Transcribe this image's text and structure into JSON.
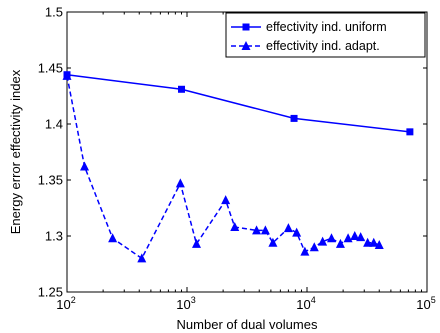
{
  "chart_data": {
    "type": "line",
    "title": "",
    "xlabel": "Number of dual volumes",
    "ylabel": "Energy error effectivity index",
    "x_scale": "log",
    "xlim": [
      100,
      100000
    ],
    "ylim": [
      1.25,
      1.5
    ],
    "x_ticks": [
      {
        "value": 100,
        "base": "10",
        "exp": "2"
      },
      {
        "value": 1000,
        "base": "10",
        "exp": "3"
      },
      {
        "value": 10000,
        "base": "10",
        "exp": "4"
      },
      {
        "value": 100000,
        "base": "10",
        "exp": "5"
      }
    ],
    "y_ticks": [
      {
        "value": 1.25,
        "label": "1.25"
      },
      {
        "value": 1.3,
        "label": "1.3"
      },
      {
        "value": 1.35,
        "label": "1.35"
      },
      {
        "value": 1.4,
        "label": "1.4"
      },
      {
        "value": 1.45,
        "label": "1.45"
      },
      {
        "value": 1.5,
        "label": "1.5"
      }
    ],
    "grid": false,
    "legend_position": "top-right",
    "series": [
      {
        "name": "effectivity ind. uniform",
        "color": "#0000ff",
        "line_style": "solid",
        "marker": "square",
        "x": [
          100,
          900,
          7800,
          72000
        ],
        "y": [
          1.444,
          1.431,
          1.405,
          1.393
        ]
      },
      {
        "name": "effectivity ind. adapt.",
        "color": "#0000ff",
        "line_style": "dashed",
        "marker": "triangle",
        "x": [
          100,
          140,
          240,
          420,
          880,
          1200,
          2100,
          2500,
          3800,
          4500,
          5200,
          7000,
          8200,
          9600,
          11500,
          13500,
          16000,
          19000,
          22000,
          25000,
          28000,
          32000,
          36000,
          40000
        ],
        "y": [
          1.443,
          1.362,
          1.298,
          1.28,
          1.347,
          1.293,
          1.332,
          1.308,
          1.305,
          1.305,
          1.294,
          1.307,
          1.303,
          1.286,
          1.29,
          1.295,
          1.298,
          1.293,
          1.298,
          1.3,
          1.299,
          1.294,
          1.294,
          1.292
        ]
      }
    ]
  }
}
